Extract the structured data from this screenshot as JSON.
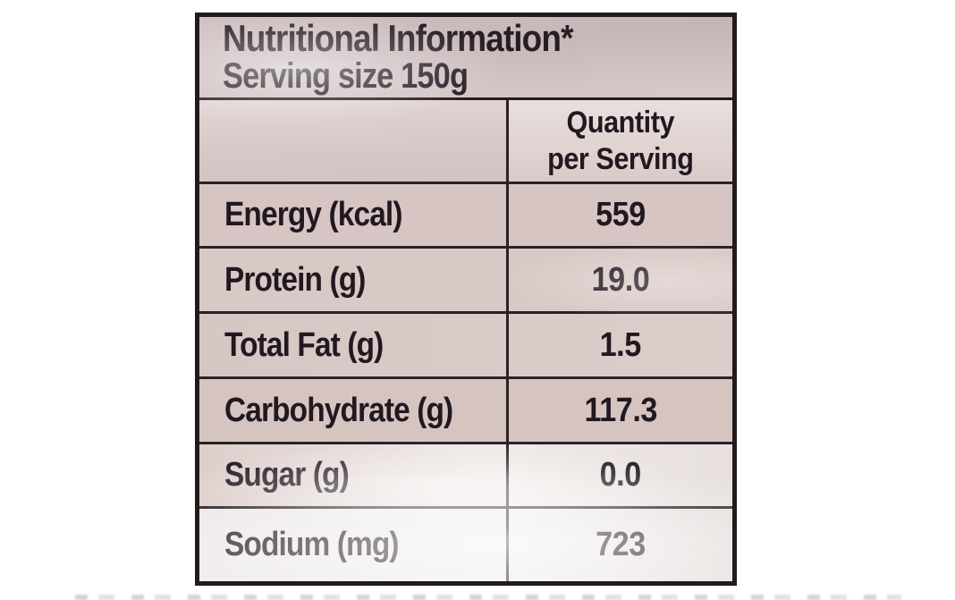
{
  "label": {
    "title": "Nutritional Information*",
    "serving_size": "Serving size 150g",
    "column_header": {
      "line1": "Quantity",
      "line2": "per Serving"
    },
    "rows": [
      {
        "name": "Energy (kcal)",
        "value": "559"
      },
      {
        "name": "Protein (g)",
        "value": "19.0"
      },
      {
        "name": "Total Fat (g)",
        "value": "1.5"
      },
      {
        "name": "Carbohydrate (g)",
        "value": "117.3"
      },
      {
        "name": "Sugar (g)",
        "value": "0.0"
      },
      {
        "name": "Sodium (mg)",
        "value": "723"
      }
    ],
    "colors": {
      "package_surface": "#d5c4c2",
      "text": "#211820",
      "border": "#221a1d",
      "page_background": "#ffffff"
    }
  }
}
